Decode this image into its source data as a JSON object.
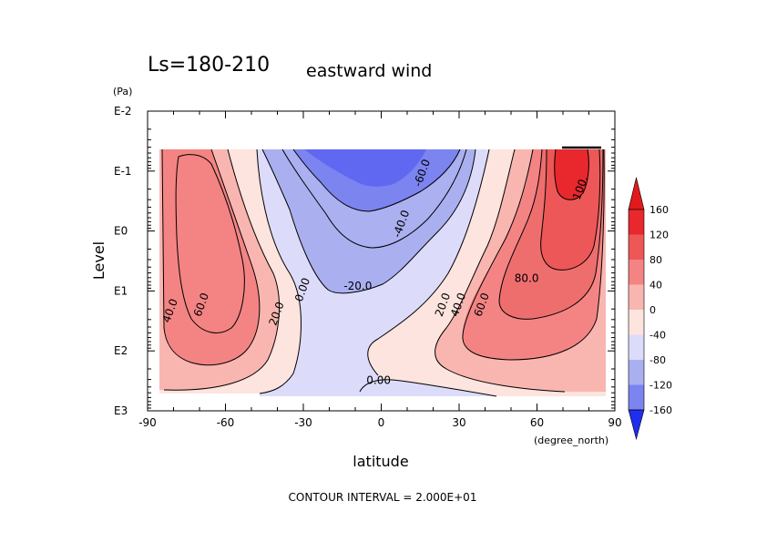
{
  "chart_data": {
    "type": "heatmap",
    "title": "Ls=180-210",
    "subtitle": "eastward wind",
    "xlabel": "latitude",
    "x_units": "(degree_north)",
    "ylabel": "Level",
    "y_units": "(Pa)",
    "xlim": [
      -90,
      90
    ],
    "x_ticks": [
      {
        "value": -90,
        "label": "-90"
      },
      {
        "value": -60,
        "label": "-60"
      },
      {
        "value": -30,
        "label": "-30"
      },
      {
        "value": 0,
        "label": "0"
      },
      {
        "value": 30,
        "label": "30"
      },
      {
        "value": 60,
        "label": "60"
      },
      {
        "value": 90,
        "label": "90"
      }
    ],
    "y_scale": "log",
    "ylim_exponent": [
      -2,
      3
    ],
    "y_ticks": [
      {
        "exponent": -2,
        "label": "E-2"
      },
      {
        "exponent": -1,
        "label": "E-1"
      },
      {
        "exponent": 0,
        "label": "E0"
      },
      {
        "exponent": 1,
        "label": "E1"
      },
      {
        "exponent": 2,
        "label": "E2"
      },
      {
        "exponent": 3,
        "label": "E3"
      }
    ],
    "colorbar": {
      "levels": [
        {
          "label": "160",
          "color": "#e8282d"
        },
        {
          "label": "120",
          "color": "#ee5757"
        },
        {
          "label": "80",
          "color": "#f48484"
        },
        {
          "label": "40",
          "color": "#f9b6b0"
        },
        {
          "label": "0",
          "color": "#fde4de"
        },
        {
          "label": "-40",
          "color": "#dcdcfa"
        },
        {
          "label": "-80",
          "color": "#aab0ef"
        },
        {
          "label": "-120",
          "color": "#7b84ef"
        },
        {
          "label": "-160",
          "color": "#3b4ae8"
        }
      ],
      "top_color": "#e31a1c",
      "bottom_color": "#1f2ff0"
    },
    "contour_labels": [
      {
        "text": "60.0",
        "lat": -68,
        "exp": 1.25
      },
      {
        "text": "40.0",
        "lat": -80,
        "exp": 1.35
      },
      {
        "text": "20.0",
        "lat": -39,
        "exp": 1.4
      },
      {
        "text": "0.00",
        "lat": -29,
        "exp": 1.0
      },
      {
        "text": "-20.0",
        "lat": -9,
        "exp": 0.98
      },
      {
        "text": "-40.0",
        "lat": 9,
        "exp": -0.1
      },
      {
        "text": "-60.0",
        "lat": 17,
        "exp": -0.95
      },
      {
        "text": "0.00",
        "lat": -1,
        "exp": 2.55
      },
      {
        "text": "20.0",
        "lat": 25,
        "exp": 1.25
      },
      {
        "text": "40.0",
        "lat": 31,
        "exp": 1.25
      },
      {
        "text": "60.0",
        "lat": 40,
        "exp": 1.25
      },
      {
        "text": "80.0",
        "lat": 56,
        "exp": 0.85
      },
      {
        "text": "100.",
        "lat": 78,
        "exp": -0.7
      }
    ],
    "note": "CONTOUR INTERVAL = 2.000E+01"
  }
}
